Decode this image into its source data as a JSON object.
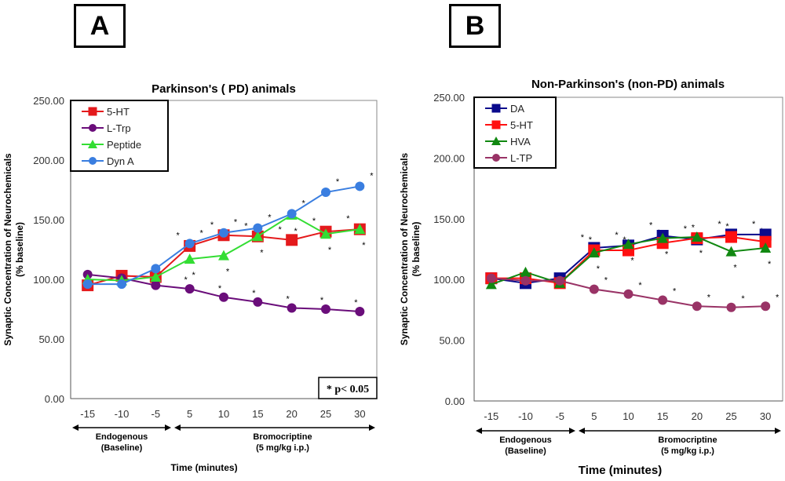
{
  "significance_marker": "*",
  "chart_data": [
    {
      "type": "line",
      "panel_label": "A",
      "title": "Parkinson's ( PD) animals",
      "ylabel": "Synaptic Concentration of Neurochemicals (% baseline)",
      "ylabel_lines": [
        "Synaptic Concentration of Neurochemicals",
        "(% baseline)"
      ],
      "xlabel": "Time (minutes)",
      "ylim": [
        0,
        250
      ],
      "yticks": [
        "0.00",
        "50.00",
        "100.00",
        "150.00",
        "200.00",
        "250.00"
      ],
      "categories": [
        "-15",
        "-10",
        "-5",
        "5",
        "10",
        "15",
        "20",
        "25",
        "30"
      ],
      "phases": [
        {
          "label": "Endogenous",
          "sublabel": "(Baseline)"
        },
        {
          "label": "Bromocriptine",
          "sublabel": "(5 mg/kg i.p.)"
        }
      ],
      "annotation": "* p< 0.05",
      "legend_position": "top-left",
      "series": [
        {
          "name": "5-HT",
          "color": "#e41a1c",
          "marker": "square",
          "values": [
            95,
            103,
            102,
            128,
            137,
            136,
            133,
            140,
            142
          ]
        },
        {
          "name": "L-Trp",
          "color": "#6a0d7a",
          "marker": "circle",
          "values": [
            104,
            101,
            95,
            92,
            85,
            81,
            76,
            75,
            73
          ]
        },
        {
          "name": "Peptide",
          "color": "#33dd33",
          "marker": "triangle",
          "values": [
            100,
            99,
            102,
            117,
            120,
            136,
            154,
            138,
            142
          ]
        },
        {
          "name": "Dyn A",
          "color": "#3a7ee0",
          "marker": "circle",
          "values": [
            96,
            96,
            109,
            130,
            139,
            143,
            155,
            173,
            178
          ]
        }
      ]
    },
    {
      "type": "line",
      "panel_label": "B",
      "title": "Non-Parkinson's (non-PD) animals",
      "ylabel": "Synaptic Concentration of Neurochemicals (% baseline)",
      "ylabel_lines": [
        "Synaptic Concentration of Neurochemicals",
        "(% baseline)"
      ],
      "xlabel": "Time (minutes)",
      "ylim": [
        0,
        250
      ],
      "yticks": [
        "0.00",
        "50.00",
        "100.00",
        "150.00",
        "200.00",
        "250.00"
      ],
      "categories": [
        "-15",
        "-10",
        "-5",
        "5",
        "10",
        "15",
        "20",
        "25",
        "30"
      ],
      "phases": [
        {
          "label": "Endogenous",
          "sublabel": "(Baseline)"
        },
        {
          "label": "Bromocriptine",
          "sublabel": "(5 mg/kg i.p.)"
        }
      ],
      "legend_position": "top-left",
      "series": [
        {
          "name": "DA",
          "color": "#0a0a8c",
          "marker": "square",
          "values": [
            101,
            97,
            101,
            126,
            128,
            136,
            133,
            137,
            137
          ]
        },
        {
          "name": "5-HT",
          "color": "#ff1010",
          "marker": "square",
          "values": [
            101,
            101,
            97,
            124,
            124,
            130,
            134,
            135,
            131
          ]
        },
        {
          "name": "HVA",
          "color": "#118811",
          "marker": "triangle",
          "values": [
            96,
            106,
            97,
            122,
            129,
            134,
            135,
            123,
            126
          ]
        },
        {
          "name": "L-TP",
          "color": "#993366",
          "marker": "circle",
          "values": [
            101,
            99,
            99,
            92,
            88,
            83,
            78,
            77,
            78
          ]
        }
      ]
    }
  ]
}
